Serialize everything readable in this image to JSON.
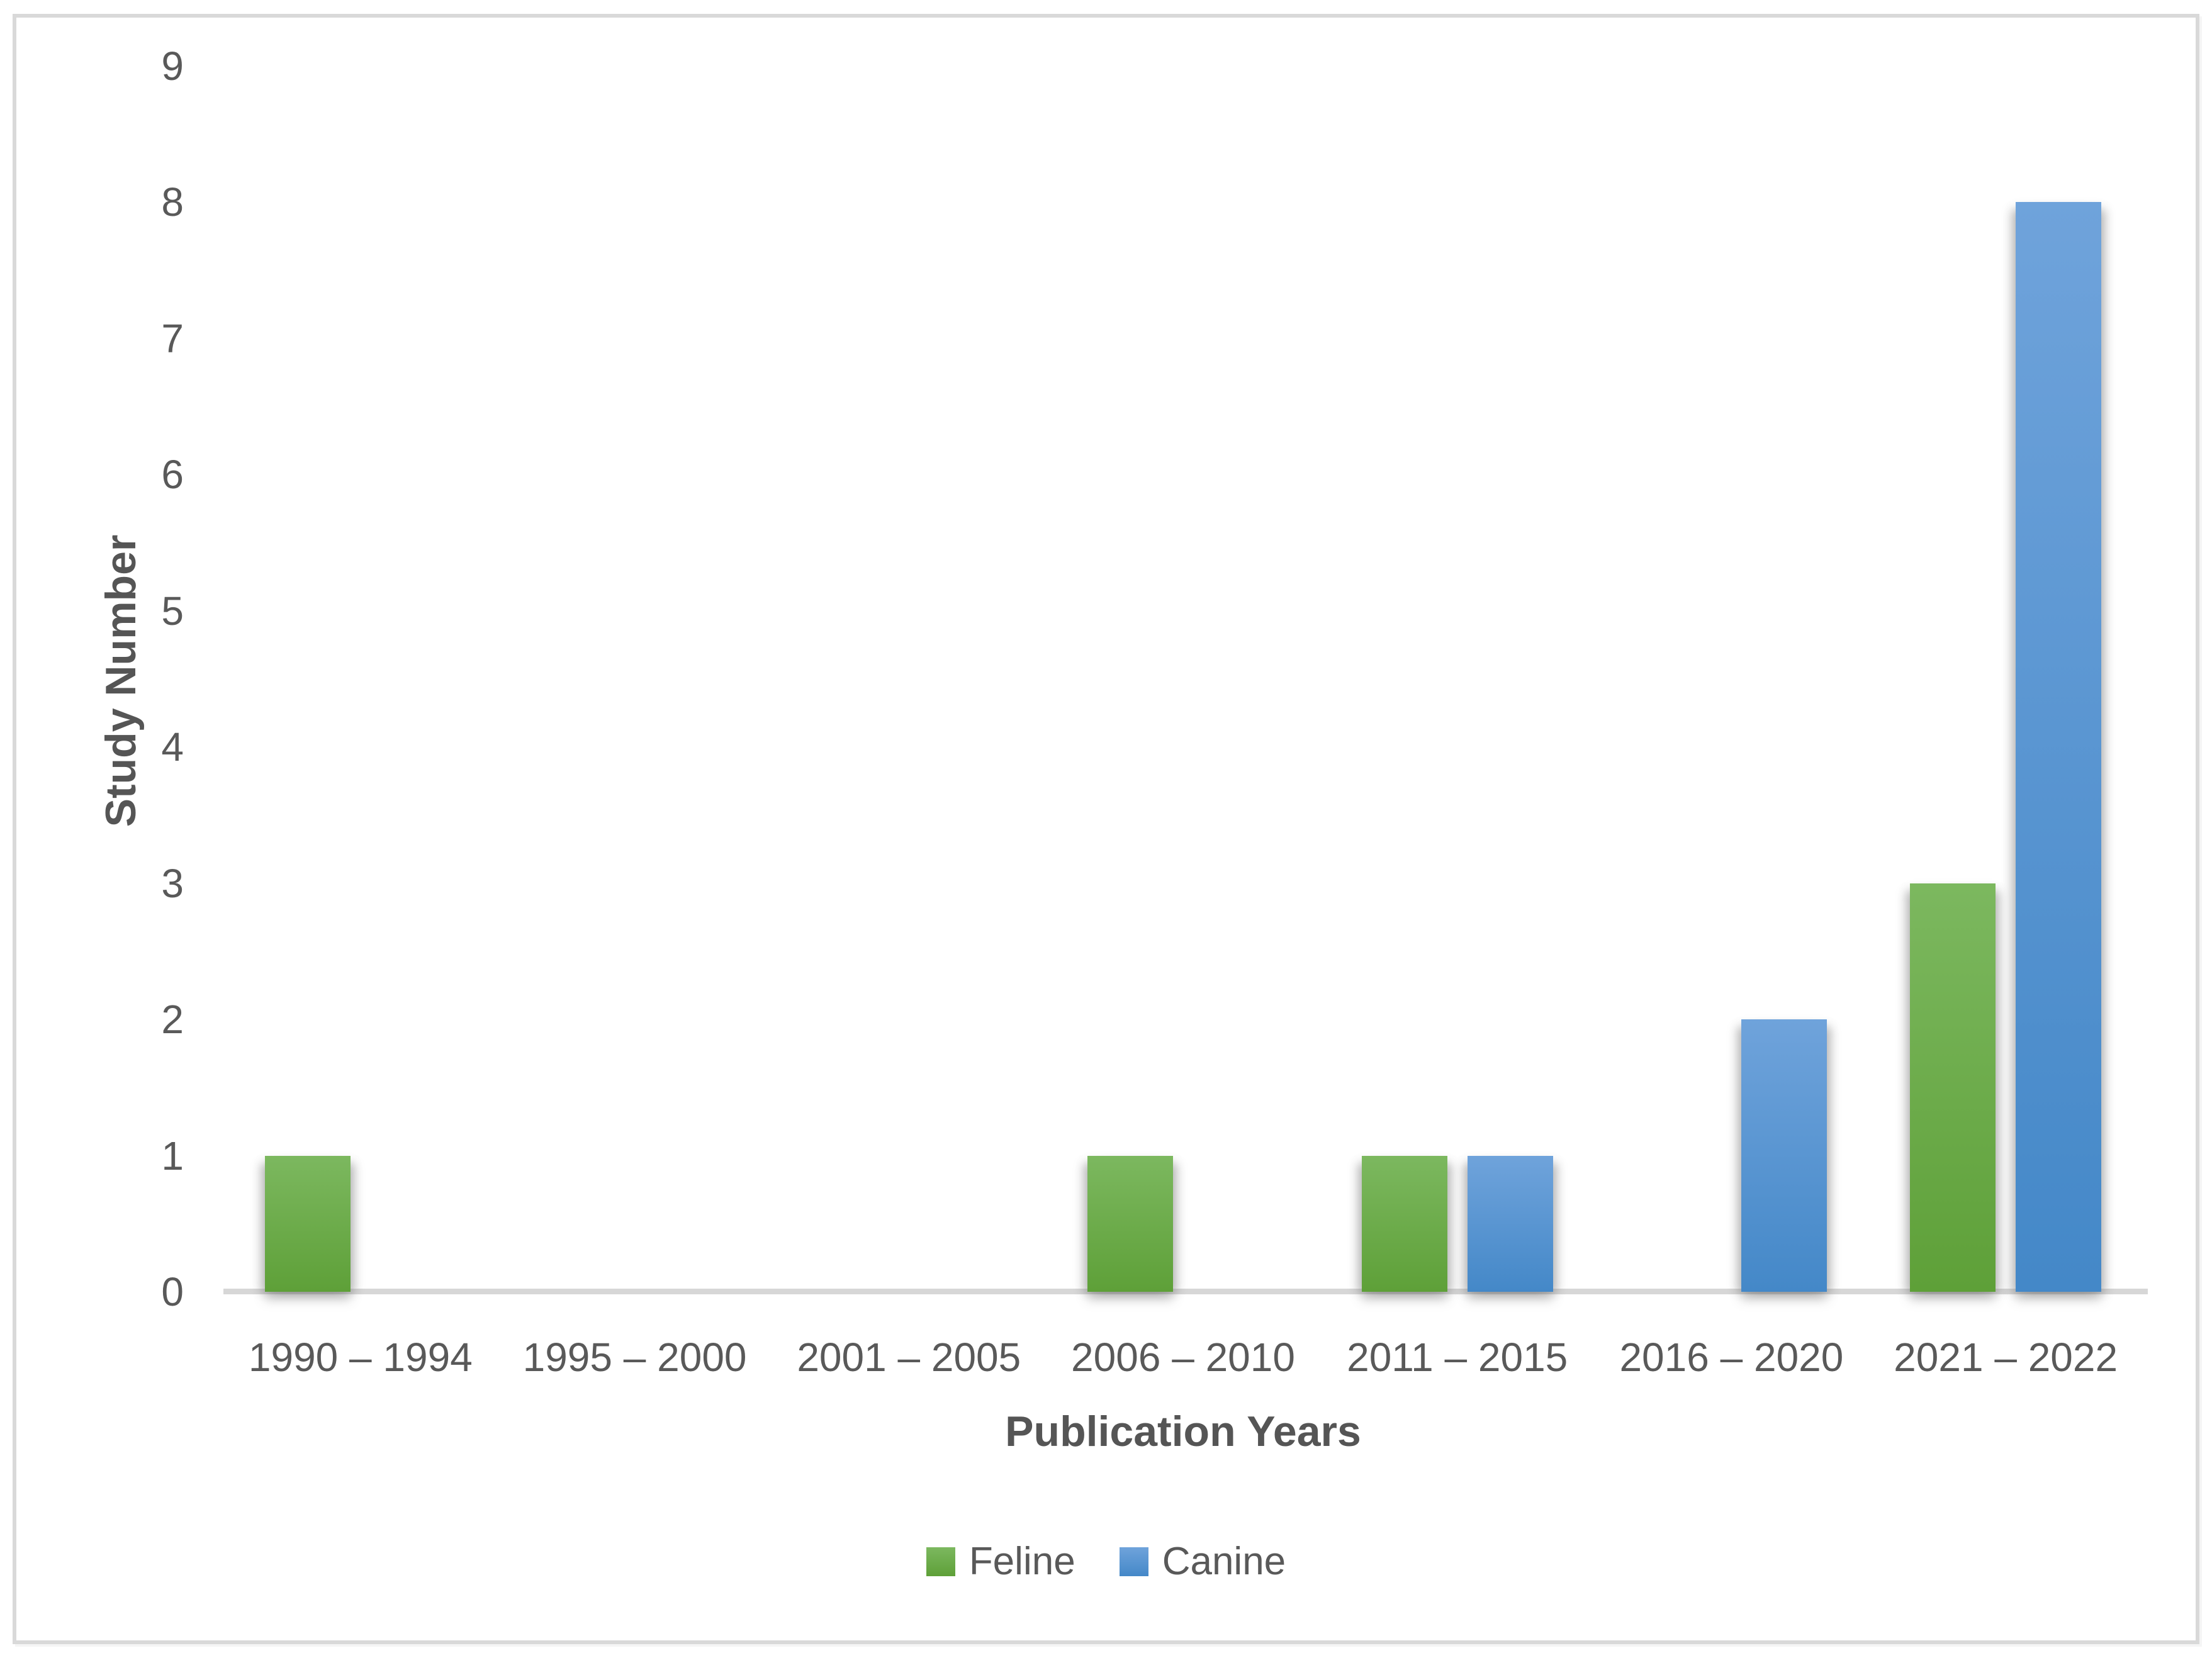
{
  "figure": {
    "background": "#ffffff",
    "border_color": "#d9d9d9"
  },
  "colors": {
    "tick_text": "#595959",
    "axis_title_text": "#555555",
    "axis_line": "#d7d7d7",
    "feline_green": "#6aac45",
    "canine_blue": "#5b9bd5"
  },
  "chart_data": {
    "type": "bar",
    "title": "",
    "categories": [
      "1990 – 1994",
      "1995 – 2000",
      "2001 – 2005",
      "2006 – 2010",
      "2011 – 2015",
      "2016 – 2020",
      "2021 – 2022"
    ],
    "series": [
      {
        "name": "Feline",
        "values": [
          1,
          0,
          0,
          1,
          1,
          0,
          3
        ],
        "color_top": "#7cb85f",
        "color_bottom": "#5ea038"
      },
      {
        "name": "Canine",
        "values": [
          0,
          0,
          0,
          0,
          1,
          2,
          8
        ],
        "color_top": "#6fa3db",
        "color_bottom": "#4488c8"
      }
    ],
    "xlabel": "Publication Years",
    "ylabel": "Study Number",
    "ylim": [
      0,
      9
    ],
    "yticks": [
      0,
      1,
      2,
      3,
      4,
      5,
      6,
      7,
      8,
      9
    ],
    "grid": false,
    "legend_position": "bottom"
  }
}
